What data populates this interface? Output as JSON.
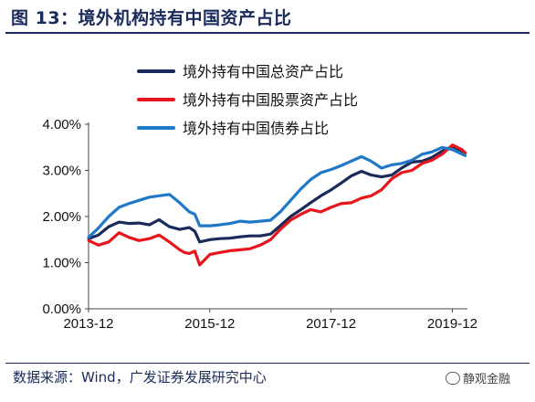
{
  "figure": {
    "title": "图 13：境外机构持有中国资产占比",
    "source": "数据来源：Wind，广发证券发展研究中心",
    "watermark": "静观金融"
  },
  "chart_data": {
    "type": "line",
    "title": "",
    "xlabel": "",
    "ylabel": "",
    "ylim": [
      0,
      4
    ],
    "y_ticks": [
      "0.00%",
      "1.00%",
      "2.00%",
      "3.00%",
      "4.00%"
    ],
    "x_tick_labels": [
      "2013-12",
      "2015-12",
      "2017-12",
      "2019-12"
    ],
    "x_tick_positions": [
      2013.917,
      2015.917,
      2017.917,
      2019.917
    ],
    "xlim": [
      2013.917,
      2020.167
    ],
    "grid": false,
    "legend_position": "top-left",
    "series": [
      {
        "name": "境外持有中国总资产占比",
        "color": "#1a2a5a",
        "x": [
          2013.92,
          2014.08,
          2014.25,
          2014.42,
          2014.58,
          2014.75,
          2014.92,
          2015.08,
          2015.25,
          2015.42,
          2015.5,
          2015.58,
          2015.67,
          2015.75,
          2015.92,
          2016.08,
          2016.25,
          2016.42,
          2016.58,
          2016.75,
          2016.92,
          2017.08,
          2017.25,
          2017.42,
          2017.58,
          2017.75,
          2017.92,
          2018.08,
          2018.25,
          2018.42,
          2018.58,
          2018.75,
          2018.92,
          2019.08,
          2019.25,
          2019.42,
          2019.58,
          2019.75,
          2019.92,
          2020.08,
          2020.13
        ],
        "y": [
          1.52,
          1.6,
          1.78,
          1.88,
          1.85,
          1.86,
          1.82,
          1.93,
          1.78,
          1.72,
          1.74,
          1.76,
          1.68,
          1.45,
          1.5,
          1.52,
          1.53,
          1.56,
          1.58,
          1.58,
          1.62,
          1.8,
          2.0,
          2.15,
          2.3,
          2.45,
          2.58,
          2.72,
          2.88,
          2.98,
          2.9,
          2.86,
          2.9,
          3.05,
          3.18,
          3.2,
          3.28,
          3.42,
          3.52,
          3.42,
          3.38
        ]
      },
      {
        "name": "境外持有中国股票资产占比",
        "color": "#e8161c",
        "x": [
          2013.92,
          2014.08,
          2014.25,
          2014.42,
          2014.58,
          2014.75,
          2014.92,
          2015.08,
          2015.25,
          2015.42,
          2015.5,
          2015.58,
          2015.67,
          2015.75,
          2015.92,
          2016.08,
          2016.25,
          2016.42,
          2016.58,
          2016.75,
          2016.92,
          2017.08,
          2017.25,
          2017.42,
          2017.58,
          2017.75,
          2017.92,
          2018.08,
          2018.25,
          2018.42,
          2018.58,
          2018.75,
          2018.92,
          2019.08,
          2019.25,
          2019.42,
          2019.58,
          2019.75,
          2019.92,
          2020.08,
          2020.13
        ],
        "y": [
          1.48,
          1.38,
          1.45,
          1.65,
          1.55,
          1.48,
          1.52,
          1.6,
          1.45,
          1.28,
          1.22,
          1.2,
          1.25,
          0.95,
          1.18,
          1.22,
          1.26,
          1.28,
          1.3,
          1.38,
          1.5,
          1.72,
          1.92,
          2.05,
          2.15,
          2.1,
          2.2,
          2.28,
          2.3,
          2.4,
          2.45,
          2.58,
          2.82,
          2.95,
          3.0,
          3.15,
          3.22,
          3.35,
          3.55,
          3.45,
          3.38
        ]
      },
      {
        "name": "境外持有中国债券占比",
        "color": "#1f78c8",
        "x": [
          2013.92,
          2014.08,
          2014.25,
          2014.42,
          2014.58,
          2014.75,
          2014.92,
          2015.08,
          2015.25,
          2015.42,
          2015.5,
          2015.58,
          2015.67,
          2015.75,
          2015.92,
          2016.08,
          2016.25,
          2016.42,
          2016.58,
          2016.75,
          2016.92,
          2017.08,
          2017.25,
          2017.42,
          2017.58,
          2017.75,
          2017.92,
          2018.08,
          2018.25,
          2018.42,
          2018.58,
          2018.75,
          2018.92,
          2019.08,
          2019.25,
          2019.42,
          2019.58,
          2019.75,
          2019.92,
          2020.08,
          2020.13
        ],
        "y": [
          1.55,
          1.75,
          2.0,
          2.2,
          2.28,
          2.35,
          2.42,
          2.45,
          2.48,
          2.3,
          2.2,
          2.1,
          2.05,
          1.8,
          1.8,
          1.82,
          1.85,
          1.9,
          1.88,
          1.9,
          1.92,
          2.1,
          2.35,
          2.6,
          2.8,
          2.95,
          3.02,
          3.1,
          3.2,
          3.3,
          3.2,
          3.05,
          3.12,
          3.15,
          3.22,
          3.35,
          3.4,
          3.5,
          3.45,
          3.35,
          3.32
        ]
      }
    ]
  }
}
